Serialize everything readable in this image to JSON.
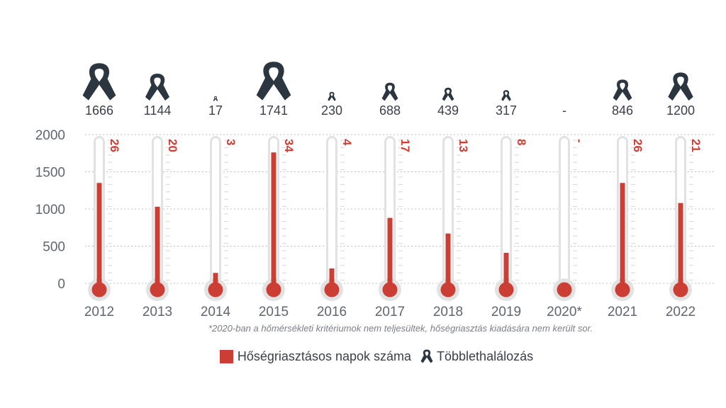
{
  "chart_data": {
    "type": "bar",
    "title": "",
    "xlabel": "",
    "ylabel": "",
    "ylim": [
      0,
      2000
    ],
    "yticks": [
      "0",
      "500",
      "1000",
      "1500",
      "2000"
    ],
    "grid": true,
    "categories": [
      "2012",
      "2013",
      "2014",
      "2015",
      "2016",
      "2017",
      "2018",
      "2019",
      "2020*",
      "2021",
      "2022"
    ],
    "series": [
      {
        "name": "Hőségriasztásos napok száma",
        "values": [
          26,
          20,
          3,
          34,
          4,
          17,
          13,
          8,
          null,
          26,
          21
        ],
        "value_labels": [
          "26",
          "20",
          "3",
          "34",
          "4",
          "17",
          "13",
          "8",
          "-",
          "26",
          "21"
        ],
        "color": "#cc3e33"
      },
      {
        "name": "Többlethalálozás",
        "values": [
          1666,
          1144,
          17,
          1741,
          230,
          688,
          439,
          317,
          null,
          846,
          1200
        ],
        "value_labels": [
          "1666",
          "1144",
          "17",
          "1741",
          "230",
          "688",
          "439",
          "317",
          "-",
          "846",
          "1200"
        ],
        "color": "#2b3640"
      }
    ],
    "thermometer_fill_values": [
      1350,
      1030,
      140,
      1760,
      200,
      880,
      670,
      410,
      0,
      1350,
      1080
    ]
  },
  "footnote": "*2020-ban a hőmérsékleti kritériumok nem teljesültek, hőségriasztás kiadására nem került sor.",
  "legend": {
    "days_label": "Hőségriasztásos napok száma",
    "deaths_label": "Többlethalálozás"
  },
  "colors": {
    "accent": "#cc3e33",
    "ribbon": "#2b3640",
    "thermometer_tube": "#e2e2e2",
    "grid": "#bfbfbf"
  }
}
